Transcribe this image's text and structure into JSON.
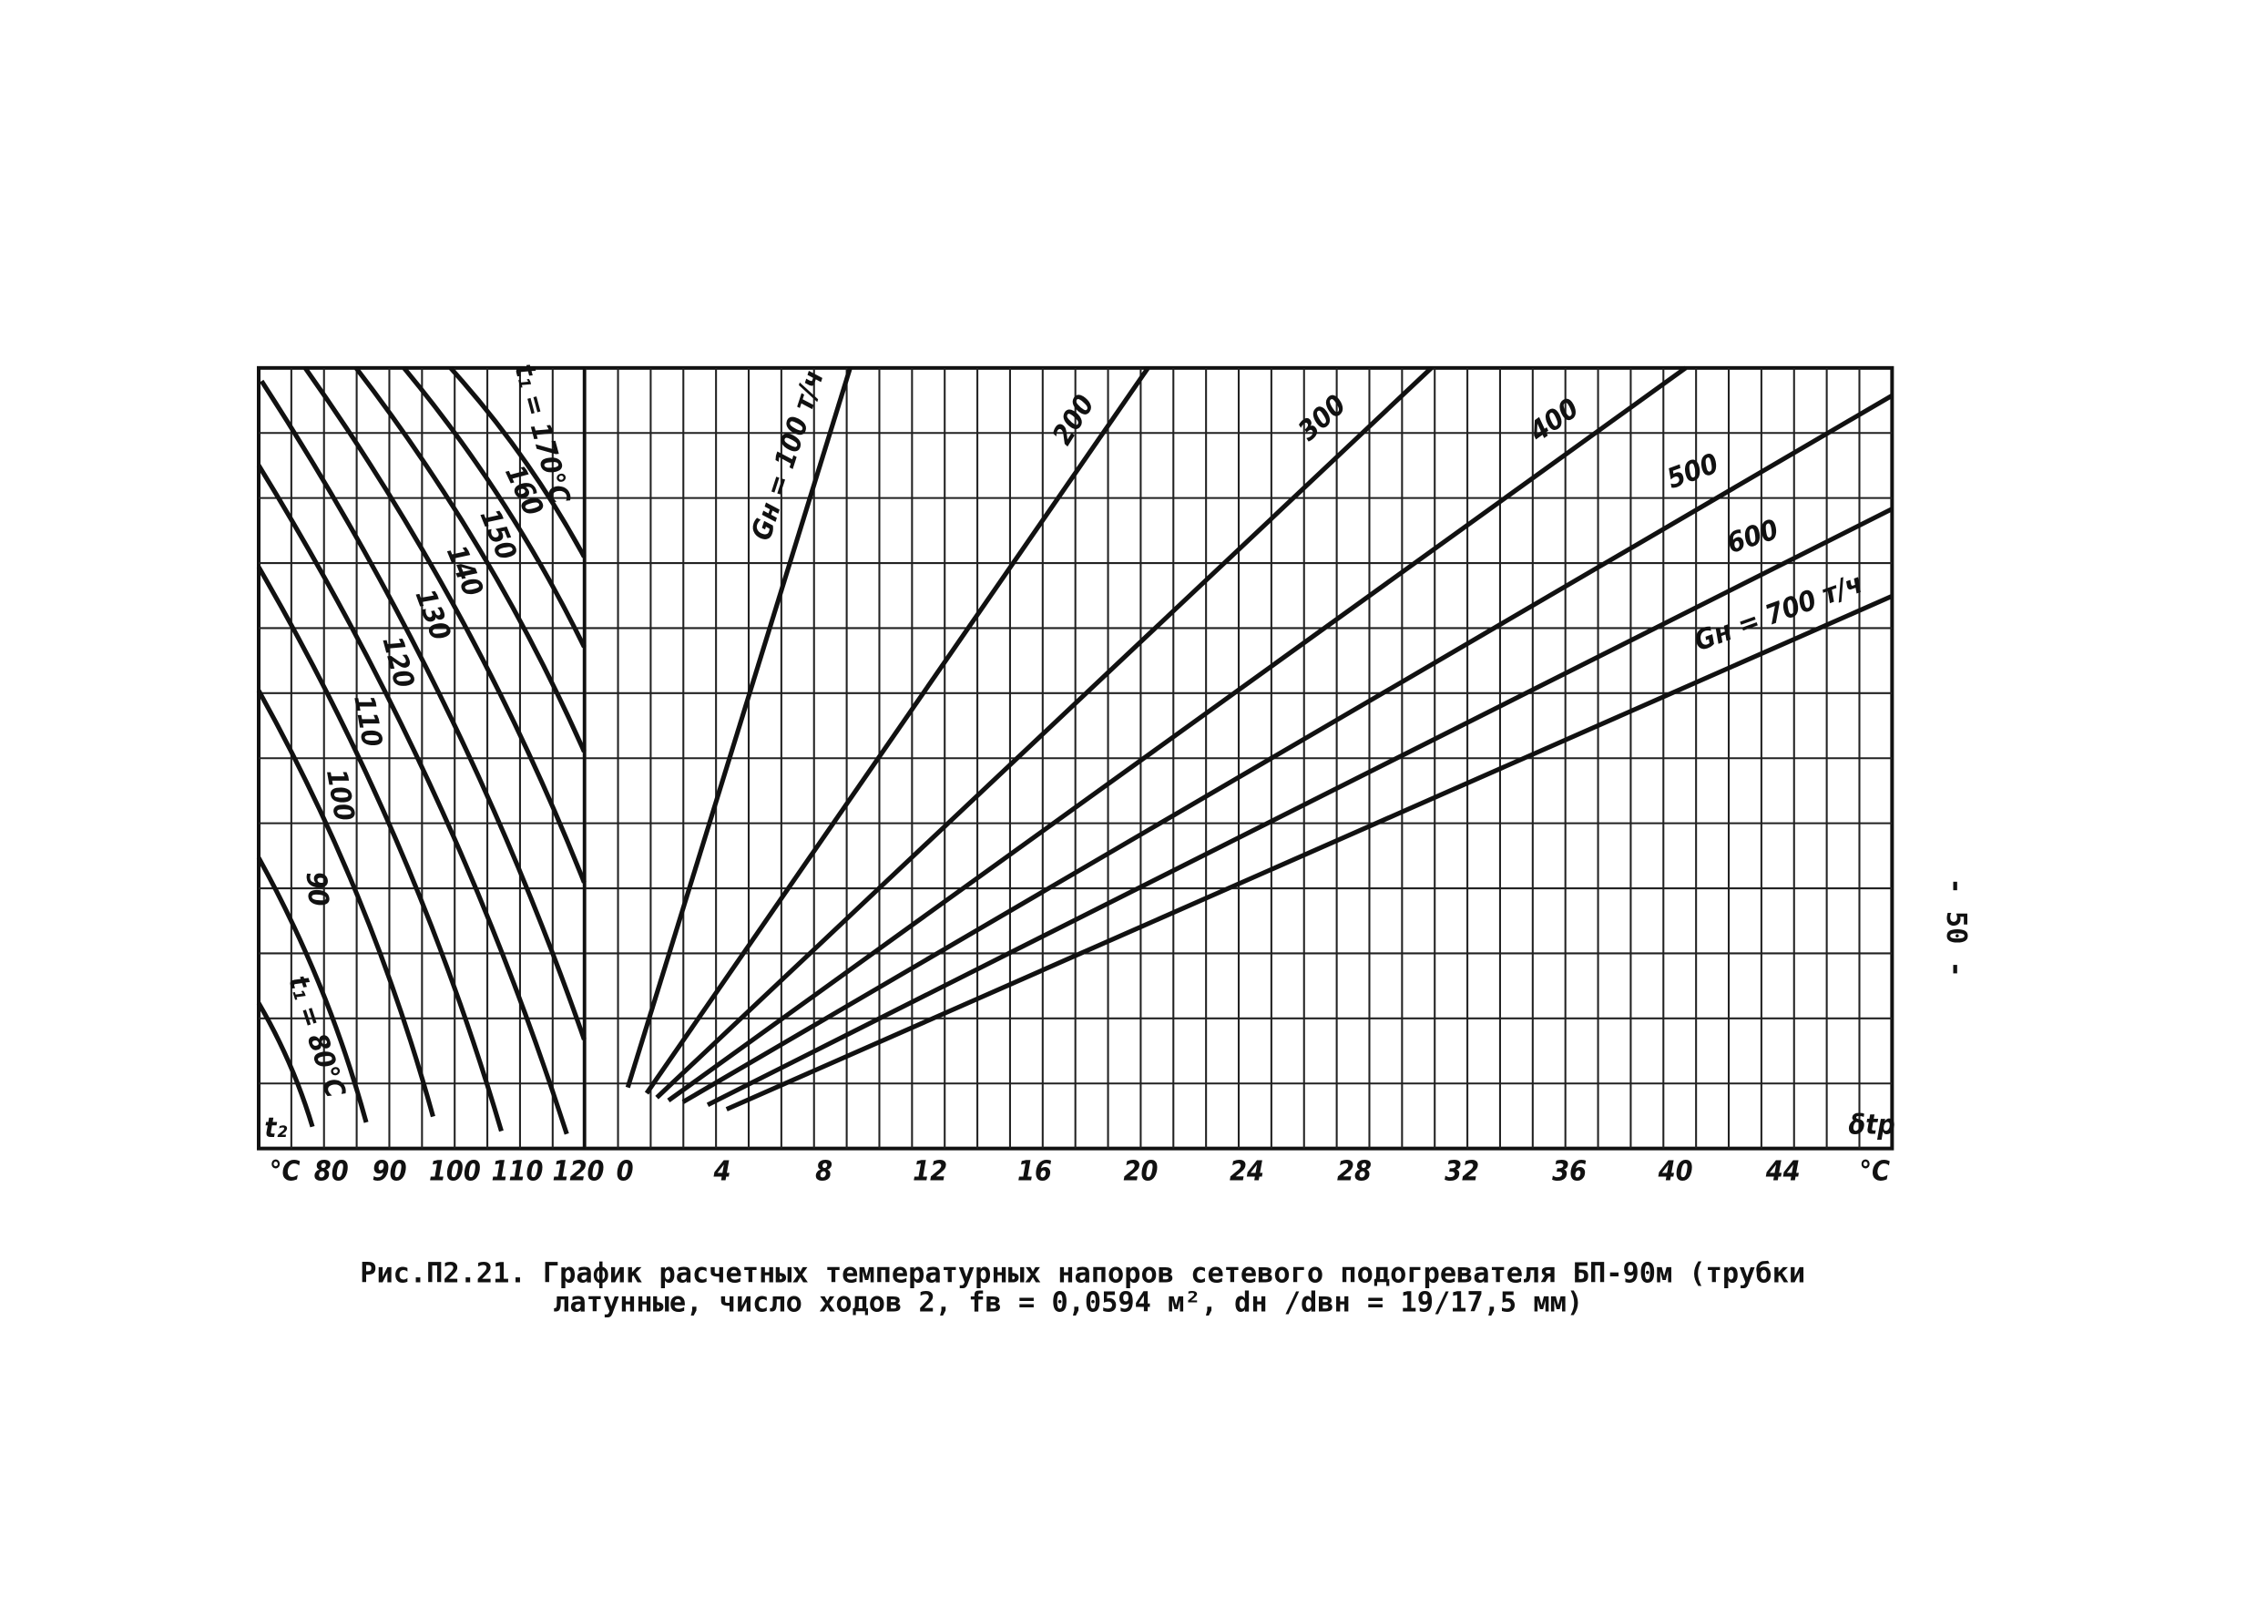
{
  "figure": {
    "x_labels_left": [
      "°C",
      "80",
      "90",
      "100",
      "110",
      "120"
    ],
    "x_labels_right": [
      "0",
      "4",
      "8",
      "12",
      "16",
      "20",
      "24",
      "28",
      "32",
      "36",
      "40",
      "44",
      "°C"
    ],
    "axis_t2": "t₂",
    "axis_dt": "δtр",
    "curves_t1": [
      "t₁ = 80°C",
      "90",
      "100",
      "110",
      "120",
      "130",
      "140",
      "150",
      "160",
      "t₁ = 170°C"
    ],
    "curves_g": [
      "Gн = 100 т/ч",
      "200",
      "300",
      "400",
      "500",
      "600",
      "Gн = 700 т/ч"
    ]
  },
  "caption": [
    "Рис.П2.21. График расчетных температурных напоров сетевого подогревателя БП-90м (трубки",
    "латунные, число ходов 2, fв = 0,0594 м², dн /dвн = 19/17,5 мм)"
  ],
  "page_number": "- 50 -"
}
